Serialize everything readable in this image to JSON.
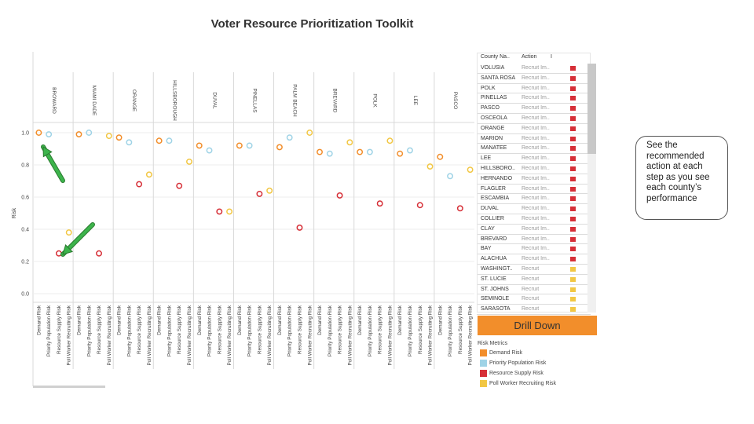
{
  "title": "Voter Resource Prioritization Toolkit",
  "chart_data": {
    "type": "scatter",
    "ylabel": "Risk",
    "ylim": [
      0,
      1.1
    ],
    "yticks": [
      "0.0",
      "0.2",
      "0.4",
      "0.6",
      "0.8",
      "1.0"
    ],
    "ytick_values": [
      0,
      0.2,
      0.4,
      0.6,
      0.8,
      1.0
    ],
    "counties": [
      "BROWARD",
      "MIAMI DADE",
      "ORANGE",
      "HILLSBOROUGH",
      "DUVAL",
      "PINELLAS",
      "PALM BEACH",
      "BREVARD",
      "POLK",
      "LEE",
      "PASCO"
    ],
    "metrics": [
      "Demand Risk",
      "Priority Population Risk",
      "Resource Supply Risk",
      "Poll Worker Recruiting Risk"
    ],
    "colors": [
      "#f28e2b",
      "#9fd3e6",
      "#d62f37",
      "#f2c744"
    ],
    "series": [
      {
        "name": "Demand Risk",
        "values": [
          1.0,
          0.99,
          0.97,
          0.95,
          0.92,
          0.92,
          0.91,
          0.88,
          0.88,
          0.87,
          0.85
        ]
      },
      {
        "name": "Priority Population Risk",
        "values": [
          0.99,
          1.0,
          0.94,
          0.95,
          0.89,
          0.92,
          0.97,
          0.87,
          0.88,
          0.89,
          0.73
        ]
      },
      {
        "name": "Resource Supply Risk",
        "values": [
          0.25,
          0.25,
          0.68,
          0.67,
          0.51,
          0.62,
          0.41,
          0.61,
          0.56,
          0.55,
          0.53
        ]
      },
      {
        "name": "Poll Worker Recruiting Risk",
        "values": [
          0.38,
          0.98,
          0.74,
          0.82,
          0.51,
          0.64,
          1.0,
          0.94,
          0.95,
          0.79,
          0.77
        ]
      }
    ]
  },
  "table": {
    "headers": [
      "County Na..",
      "Action",
      "Ι"
    ],
    "rows": [
      {
        "county": "VOLUSIA",
        "action": "Recruit Im..",
        "color": "#d62f37"
      },
      {
        "county": "SANTA ROSA",
        "action": "Recruit Im..",
        "color": "#d62f37"
      },
      {
        "county": "POLK",
        "action": "Recruit Im..",
        "color": "#d62f37"
      },
      {
        "county": "PINELLAS",
        "action": "Recruit Im..",
        "color": "#d62f37"
      },
      {
        "county": "PASCO",
        "action": "Recruit Im..",
        "color": "#d62f37"
      },
      {
        "county": "OSCEOLA",
        "action": "Recruit Im..",
        "color": "#d62f37"
      },
      {
        "county": "ORANGE",
        "action": "Recruit Im..",
        "color": "#d62f37"
      },
      {
        "county": "MARION",
        "action": "Recruit Im..",
        "color": "#d62f37"
      },
      {
        "county": "MANATEE",
        "action": "Recruit Im..",
        "color": "#d62f37"
      },
      {
        "county": "LEE",
        "action": "Recruit Im..",
        "color": "#d62f37"
      },
      {
        "county": "HILLSBORO..",
        "action": "Recruit Im..",
        "color": "#d62f37"
      },
      {
        "county": "HERNANDO",
        "action": "Recruit Im..",
        "color": "#d62f37"
      },
      {
        "county": "FLAGLER",
        "action": "Recruit Im..",
        "color": "#d62f37"
      },
      {
        "county": "ESCAMBIA",
        "action": "Recruit Im..",
        "color": "#d62f37"
      },
      {
        "county": "DUVAL",
        "action": "Recruit Im..",
        "color": "#d62f37"
      },
      {
        "county": "COLLIER",
        "action": "Recruit Im..",
        "color": "#d62f37"
      },
      {
        "county": "CLAY",
        "action": "Recruit Im..",
        "color": "#d62f37"
      },
      {
        "county": "BREVARD",
        "action": "Recruit Im..",
        "color": "#d62f37"
      },
      {
        "county": "BAY",
        "action": "Recruit Im..",
        "color": "#d62f37"
      },
      {
        "county": "ALACHUA",
        "action": "Recruit Im..",
        "color": "#d62f37"
      },
      {
        "county": "WASHINGT..",
        "action": "Recruit",
        "color": "#f2c744"
      },
      {
        "county": "ST. LUCIE",
        "action": "Recruit",
        "color": "#f2c744"
      },
      {
        "county": "ST. JOHNS",
        "action": "Recruit",
        "color": "#f2c744"
      },
      {
        "county": "SEMINOLE",
        "action": "Recruit",
        "color": "#f2c744"
      },
      {
        "county": "SARASOTA",
        "action": "Recruit",
        "color": "#f2c744"
      }
    ]
  },
  "drill_label": "Drill Down",
  "legend": {
    "title": "Risk Metrics",
    "items": [
      {
        "label": "Demand Risk",
        "color": "#f28e2b"
      },
      {
        "label": "Priority Population Risk",
        "color": "#9fd3e6"
      },
      {
        "label": "Resource Supply Risk",
        "color": "#d62f37"
      },
      {
        "label": "Poll Worker Recruiting Risk",
        "color": "#f2c744"
      }
    ]
  },
  "callout": "See the recommended action at each step as you  see each county’s performance",
  "arrow_color": "#3cb44b"
}
